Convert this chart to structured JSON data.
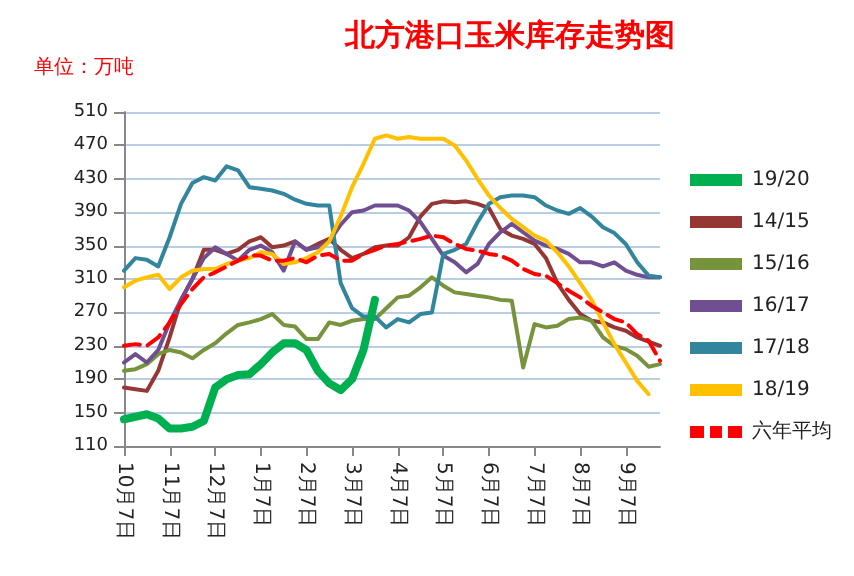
{
  "chart_data": {
    "type": "line",
    "title": "北方港口玉米库存走势图",
    "ylabel": "单位：万吨",
    "categories": [
      "10月7日",
      null,
      null,
      null,
      "11月7日",
      null,
      null,
      null,
      "12月7日",
      null,
      null,
      null,
      "1月7日",
      null,
      null,
      null,
      "2月7日",
      null,
      null,
      null,
      "3月7日",
      null,
      null,
      null,
      "4月7日",
      null,
      null,
      null,
      "5月7日",
      null,
      null,
      null,
      "6月7日",
      null,
      null,
      null,
      "7月7日",
      null,
      null,
      null,
      "8月7日",
      null,
      null,
      null,
      "9月7日",
      null,
      null,
      null
    ],
    "series": [
      {
        "name": "19/20",
        "color": "#00b050",
        "values": [
          142,
          145,
          148,
          143,
          131,
          131,
          133,
          140,
          180,
          190,
          195,
          196,
          208,
          222,
          233,
          233,
          225,
          200,
          185,
          177,
          190,
          225,
          285,
          null,
          null,
          null,
          null,
          null,
          null,
          null,
          null,
          null,
          null,
          null,
          null,
          null,
          null,
          null,
          null,
          null,
          null,
          null,
          null,
          null,
          null,
          null,
          null,
          null
        ]
      },
      {
        "name": "14/15",
        "color": "#953735",
        "values": [
          180,
          178,
          176,
          200,
          240,
          285,
          310,
          345,
          345,
          340,
          345,
          355,
          360,
          348,
          350,
          355,
          345,
          352,
          358,
          345,
          335,
          340,
          348,
          350,
          350,
          360,
          385,
          400,
          403,
          402,
          403,
          400,
          395,
          370,
          362,
          358,
          352,
          335,
          305,
          285,
          268,
          260,
          258,
          252,
          248,
          240,
          235,
          230
        ]
      },
      {
        "name": "15/16",
        "color": "#77933c",
        "values": [
          200,
          202,
          208,
          220,
          225,
          222,
          215,
          225,
          233,
          245,
          255,
          258,
          262,
          268,
          255,
          253,
          238,
          238,
          258,
          255,
          260,
          262,
          262,
          275,
          288,
          290,
          300,
          312,
          302,
          294,
          292,
          290,
          288,
          285,
          284,
          204,
          256,
          252,
          254,
          262,
          264,
          260,
          240,
          230,
          226,
          218,
          205,
          208
        ]
      },
      {
        "name": "16/17",
        "color": "#6f4f91",
        "values": [
          210,
          220,
          210,
          225,
          258,
          285,
          310,
          335,
          348,
          340,
          332,
          345,
          350,
          342,
          320,
          355,
          345,
          348,
          355,
          375,
          390,
          392,
          398,
          398,
          398,
          392,
          378,
          358,
          338,
          330,
          318,
          328,
          352,
          366,
          376,
          366,
          356,
          350,
          346,
          340,
          330,
          330,
          325,
          330,
          320,
          315,
          312,
          312
        ]
      },
      {
        "name": "17/18",
        "color": "#31859c",
        "values": [
          320,
          335,
          333,
          325,
          360,
          400,
          425,
          432,
          428,
          445,
          440,
          420,
          418,
          416,
          412,
          405,
          400,
          398,
          398,
          305,
          275,
          265,
          265,
          252,
          262,
          258,
          268,
          270,
          340,
          345,
          352,
          378,
          400,
          408,
          410,
          410,
          408,
          398,
          392,
          388,
          395,
          385,
          372,
          365,
          352,
          330,
          314,
          312
        ]
      },
      {
        "name": "18/19",
        "color": "#ffc000",
        "values": [
          300,
          308,
          312,
          315,
          298,
          312,
          320,
          322,
          322,
          328,
          332,
          335,
          342,
          340,
          328,
          330,
          335,
          342,
          355,
          385,
          420,
          448,
          478,
          482,
          478,
          480,
          478,
          478,
          478,
          470,
          452,
          430,
          410,
          395,
          382,
          372,
          362,
          356,
          342,
          325,
          305,
          285,
          258,
          232,
          210,
          188,
          172,
          null
        ]
      },
      {
        "name": "六年平均",
        "color": "#ff0000",
        "line_style": "dashed",
        "values": [
          230,
          232,
          230,
          240,
          258,
          280,
          298,
          312,
          318,
          325,
          332,
          338,
          338,
          332,
          332,
          335,
          330,
          338,
          340,
          332,
          332,
          340,
          345,
          350,
          352,
          355,
          358,
          362,
          360,
          352,
          346,
          344,
          340,
          338,
          332,
          322,
          316,
          314,
          305,
          296,
          288,
          278,
          270,
          262,
          258,
          244,
          236,
          212
        ]
      }
    ],
    "ylim": [
      110,
      510
    ],
    "yticks": [
      110,
      150,
      190,
      230,
      270,
      310,
      350,
      390,
      430,
      470,
      510
    ],
    "grid": "y",
    "legend": "right",
    "marker": "none"
  }
}
